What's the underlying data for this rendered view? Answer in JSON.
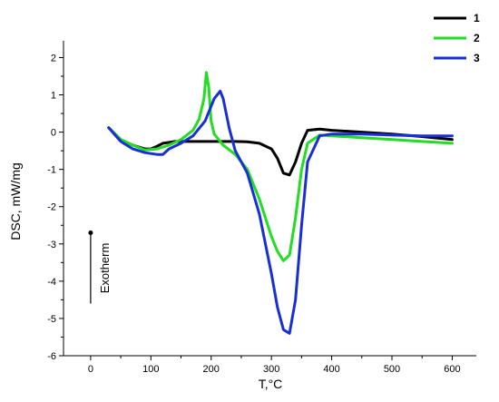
{
  "chart_data": {
    "type": "line",
    "xlabel": "T,°C",
    "ylabel": "DSC, mW/mg",
    "xlim": [
      -45,
      640
    ],
    "ylim": [
      -6,
      2.45
    ],
    "xticks": [
      0,
      100,
      200,
      300,
      400,
      500,
      600
    ],
    "yticks": [
      -6,
      -5,
      -4,
      -3,
      -2,
      -1,
      0,
      1,
      2
    ],
    "legend_position": "top-right",
    "annotation": {
      "text": "Exotherm",
      "x": 0,
      "y_top": -2.7,
      "y_bottom": -4.6
    },
    "series": [
      {
        "name": "1",
        "color": "#000000",
        "x": [
          30,
          50,
          70,
          90,
          100,
          110,
          120,
          140,
          160,
          180,
          200,
          220,
          240,
          260,
          280,
          300,
          310,
          320,
          330,
          340,
          350,
          360,
          380,
          400,
          450,
          500,
          550,
          600
        ],
        "y": [
          0.12,
          -0.2,
          -0.35,
          -0.45,
          -0.45,
          -0.38,
          -0.3,
          -0.25,
          -0.25,
          -0.25,
          -0.25,
          -0.25,
          -0.25,
          -0.26,
          -0.3,
          -0.45,
          -0.7,
          -1.1,
          -1.15,
          -0.8,
          -0.3,
          0.05,
          0.08,
          0.05,
          0.0,
          -0.05,
          -0.12,
          -0.2
        ]
      },
      {
        "name": "2",
        "color": "#22dd22",
        "x": [
          30,
          50,
          70,
          90,
          110,
          130,
          150,
          170,
          180,
          188,
          192,
          196,
          200,
          205,
          210,
          220,
          240,
          260,
          280,
          300,
          310,
          320,
          330,
          340,
          350,
          360,
          380,
          400,
          450,
          500,
          550,
          600
        ],
        "y": [
          0.12,
          -0.2,
          -0.35,
          -0.48,
          -0.45,
          -0.35,
          -0.2,
          0.05,
          0.35,
          0.9,
          1.6,
          1.2,
          0.3,
          -0.05,
          -0.15,
          -0.35,
          -0.6,
          -1.0,
          -1.8,
          -2.8,
          -3.2,
          -3.45,
          -3.3,
          -2.3,
          -1.0,
          -0.3,
          -0.08,
          -0.1,
          -0.15,
          -0.2,
          -0.25,
          -0.3
        ]
      },
      {
        "name": "3",
        "color": "#1a2ed6",
        "x": [
          30,
          50,
          70,
          90,
          110,
          120,
          130,
          150,
          170,
          190,
          205,
          215,
          220,
          230,
          240,
          260,
          280,
          300,
          310,
          320,
          330,
          340,
          350,
          360,
          380,
          400,
          450,
          500,
          550,
          600
        ],
        "y": [
          0.12,
          -0.25,
          -0.45,
          -0.55,
          -0.6,
          -0.6,
          -0.45,
          -0.3,
          -0.1,
          0.3,
          0.9,
          1.1,
          0.9,
          0.1,
          -0.5,
          -1.1,
          -2.2,
          -3.8,
          -4.7,
          -5.3,
          -5.4,
          -4.5,
          -2.5,
          -0.8,
          -0.1,
          -0.05,
          -0.05,
          -0.08,
          -0.1,
          -0.1
        ]
      }
    ]
  }
}
